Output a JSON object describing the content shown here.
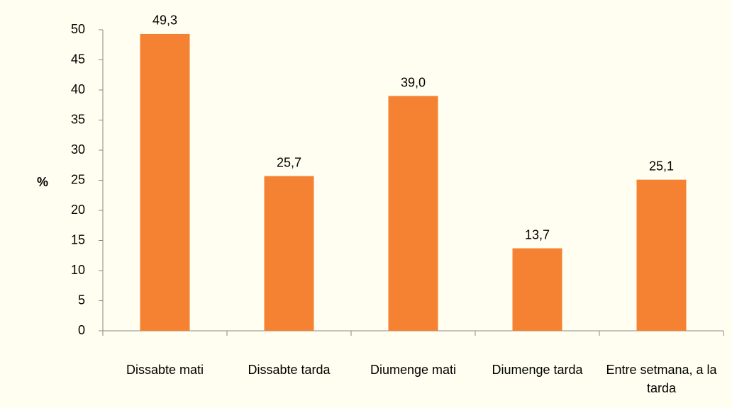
{
  "chart_data": {
    "type": "bar",
    "y_label": "%",
    "categories": [
      "Dissabte mati",
      "Dissabte tarda",
      "Diumenge mati",
      "Diumenge tarda",
      "Entre setmana, a la tarda"
    ],
    "values": [
      49.3,
      25.7,
      39.0,
      13.7,
      25.1
    ],
    "value_labels": [
      "49,3",
      "25,7",
      "39,0",
      "13,7",
      "25,1"
    ],
    "color": "#f58232",
    "ylim": [
      0,
      50
    ],
    "yticks": [
      0,
      5,
      10,
      15,
      20,
      25,
      30,
      35,
      40,
      45,
      50
    ],
    "grid": false
  }
}
